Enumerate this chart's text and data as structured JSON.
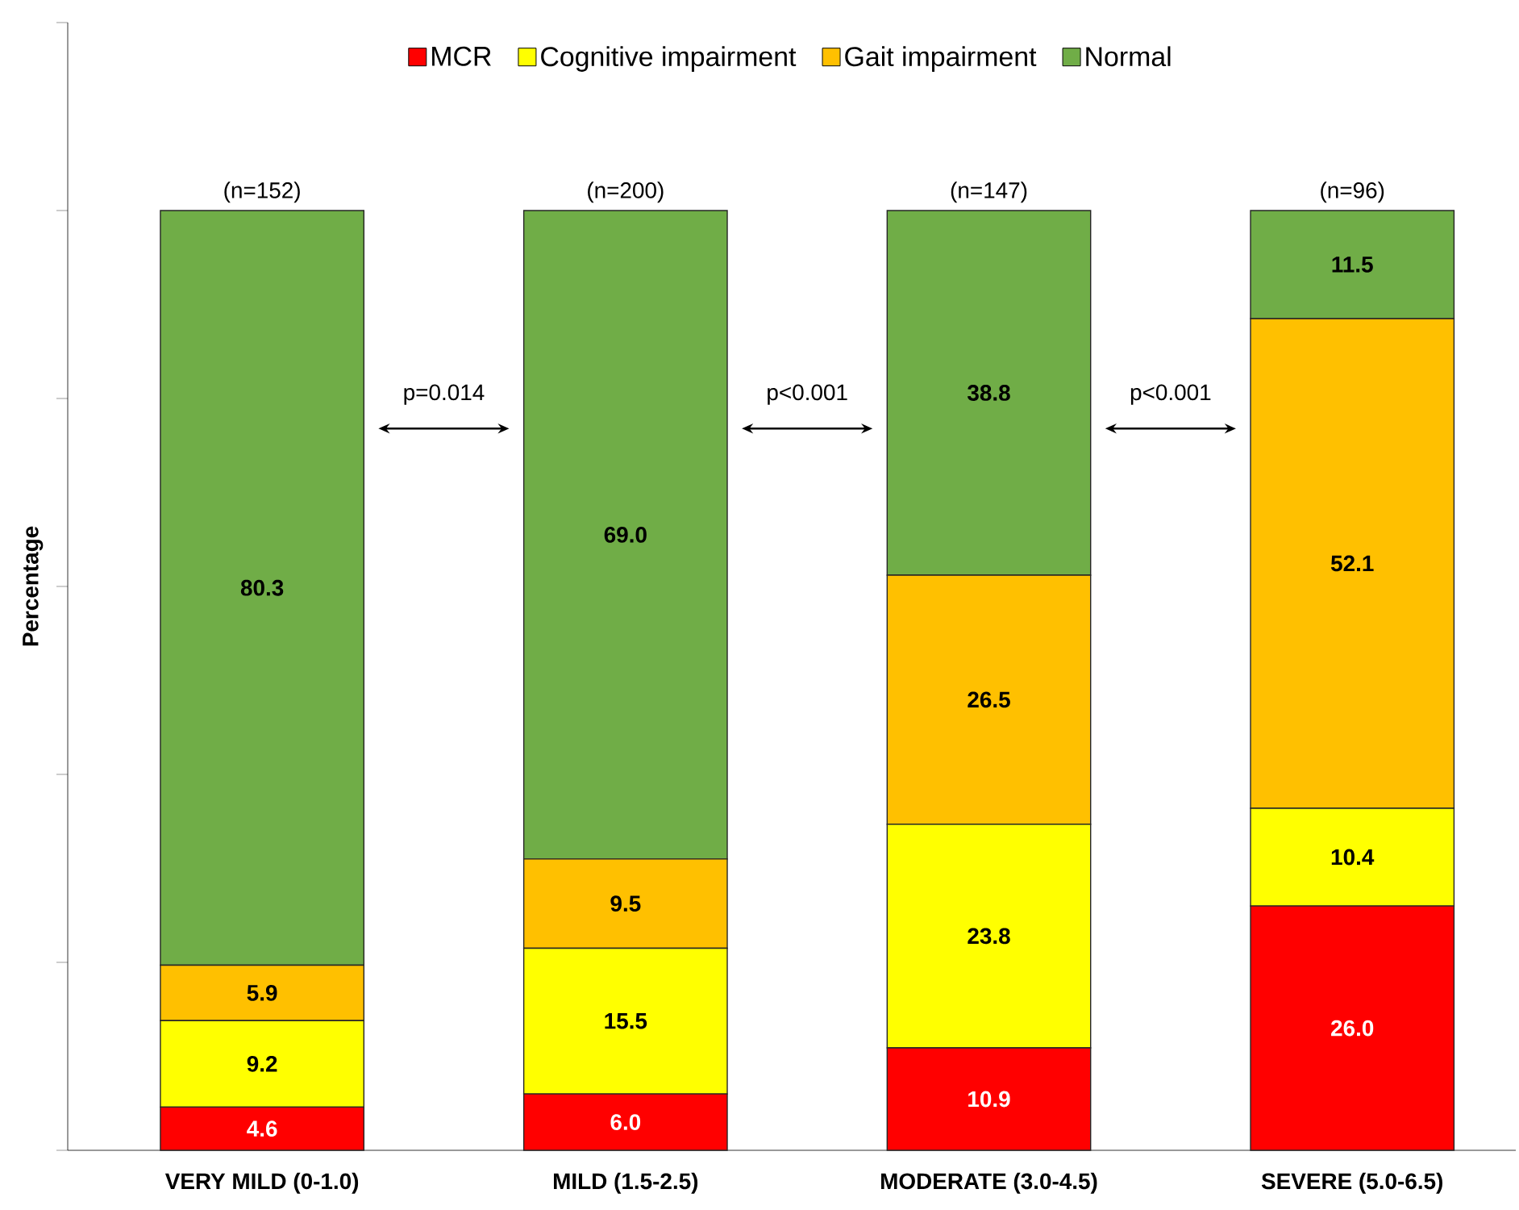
{
  "chart_data": {
    "type": "bar",
    "stacked": true,
    "ylabel": "Percentage",
    "categories": [
      "VERY MILD (0-1.0)",
      "MILD (1.5-2.5)",
      "MODERATE (3.0-4.5)",
      "SEVERE (5.0-6.5)"
    ],
    "series": [
      {
        "name": "MCR",
        "color": "#ff0000",
        "values": [
          4.6,
          6.0,
          10.9,
          26.0
        ],
        "value_labels": [
          "4.6",
          "6.0",
          "10.9",
          "26.0"
        ]
      },
      {
        "name": "Cognitive impairment",
        "color": "#ffff00",
        "values": [
          9.2,
          15.5,
          23.8,
          10.4
        ],
        "value_labels": [
          "9.2",
          "15.5",
          "23.8",
          "10.4"
        ]
      },
      {
        "name": "Gait impairment",
        "color": "#ffc000",
        "values": [
          5.9,
          9.5,
          26.5,
          52.1
        ],
        "value_labels": [
          "5.9",
          "9.5",
          "26.5",
          "52.1"
        ]
      },
      {
        "name": "Normal",
        "color": "#70ad47",
        "values": [
          80.3,
          69.0,
          38.8,
          11.5
        ],
        "value_labels": [
          "80.3",
          "69.0",
          "38.8",
          "11.5"
        ]
      }
    ],
    "ylim": [
      0,
      120
    ],
    "yticks": [
      {
        "value": 0,
        "label": null
      },
      {
        "value": 20,
        "label": null
      },
      {
        "value": 40,
        "label": null
      },
      {
        "value": 60,
        "label": null
      },
      {
        "value": 80,
        "label": null
      },
      {
        "value": 100,
        "label": null
      },
      {
        "value": 120,
        "label": null
      }
    ],
    "tick_labels": "x",
    "grid": false,
    "legend": "top",
    "annotations": [
      {
        "text": "(n=152)",
        "x": "VERY MILD (0-1.0)",
        "y": 100
      },
      {
        "text": "(n=200)",
        "x": "MILD (1.5-2.5)",
        "y": 100
      },
      {
        "text": "(n=147)",
        "x": "MODERATE (3.0-4.5)",
        "y": 100
      },
      {
        "text": "(n=96)",
        "x": "SEVERE (5.0-6.5)",
        "y": 100
      },
      "p=0.014",
      "p<0.001",
      "p<0.001"
    ]
  }
}
